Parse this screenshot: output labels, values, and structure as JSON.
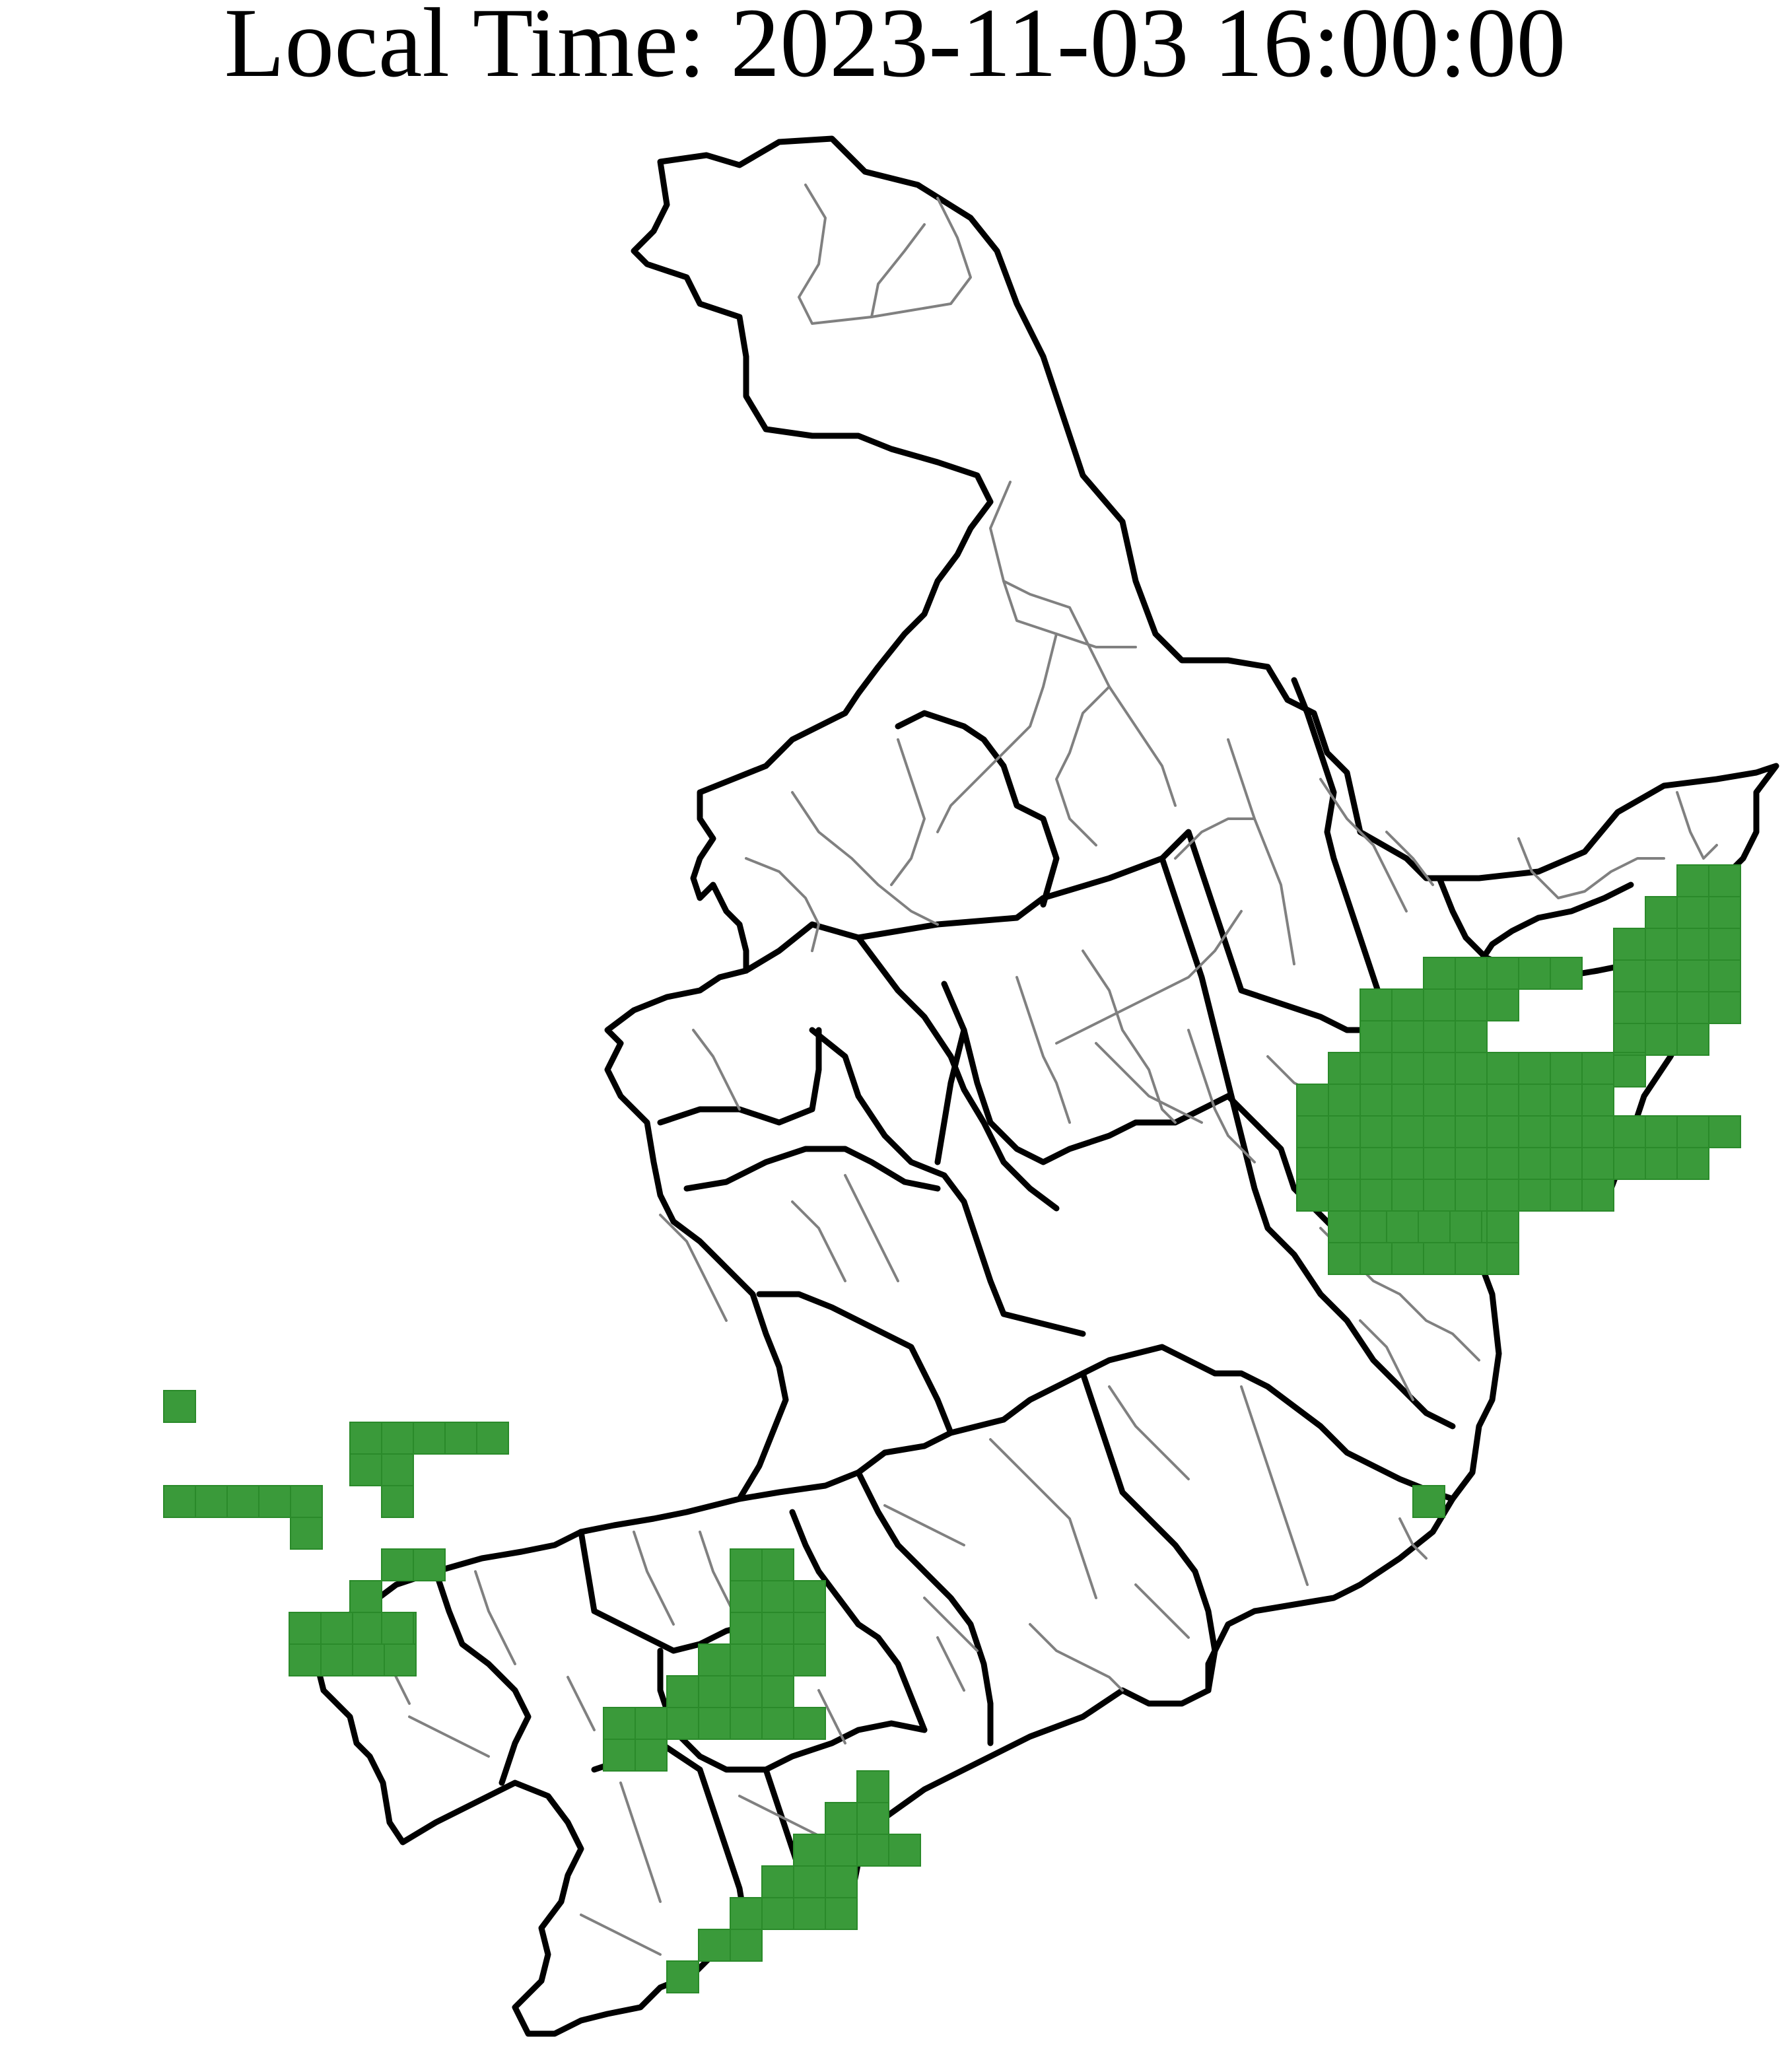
{
  "title": "Local Time: 2023-11-03 16:00:00",
  "colors": {
    "cell_fill": "#3a9a3a",
    "province_border": "#000000",
    "county_border": "#808080",
    "background": "#ffffff"
  },
  "map": {
    "region": "Northeast China",
    "layers": [
      "province-borders",
      "county-borders",
      "grid-cells"
    ],
    "legend": "none"
  }
}
